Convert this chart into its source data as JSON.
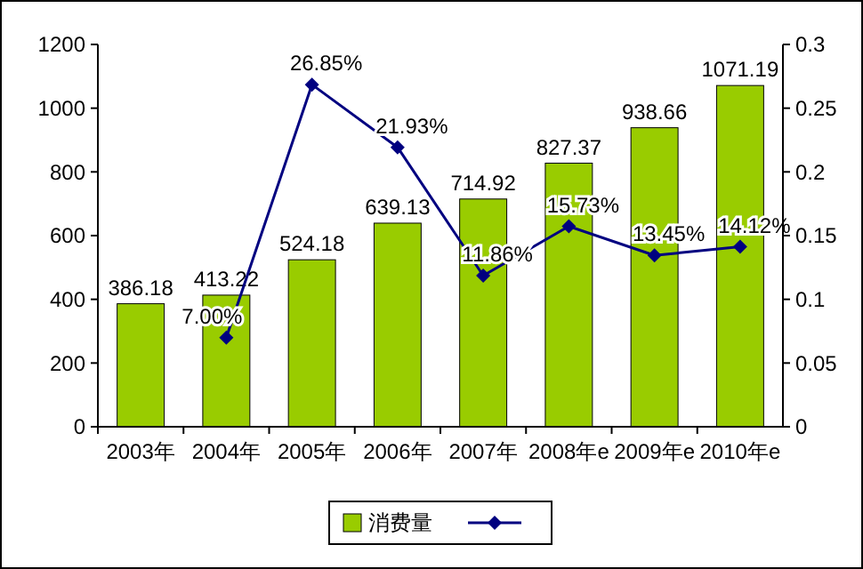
{
  "chart_data": {
    "type": "bar",
    "categories": [
      "2003年",
      "2004年",
      "2005年",
      "2006年",
      "2007年",
      "2008年e",
      "2009年e",
      "2010年e"
    ],
    "series": [
      {
        "name": "消费量",
        "color": "#99cc00",
        "values": [
          386.18,
          413.22,
          524.18,
          639.13,
          714.92,
          827.37,
          938.66,
          1071.19
        ],
        "value_labels": [
          "386.18",
          "413.22",
          "524.18",
          "639.13",
          "714.92",
          "827.37",
          "938.66",
          "1071.19"
        ]
      },
      {
        "type": "line",
        "axis": "y2",
        "color": "#000080",
        "marker": "diamond",
        "values": [
          null,
          0.07,
          0.2685,
          0.2193,
          0.1186,
          0.1573,
          0.1345,
          0.1412
        ],
        "value_labels": [
          null,
          "7.00%",
          "26.85%",
          "21.93%",
          "11.86%",
          "15.73%",
          "13.45%",
          "14.12%"
        ]
      }
    ],
    "ylim": [
      0,
      1200
    ],
    "yticks": [
      0,
      200,
      400,
      600,
      800,
      1000,
      1200
    ],
    "y2lim": [
      0,
      0.3
    ],
    "y2ticks": [
      0,
      0.05,
      0.1,
      0.15,
      0.2,
      0.25,
      0.3
    ],
    "legend": "bottom"
  }
}
